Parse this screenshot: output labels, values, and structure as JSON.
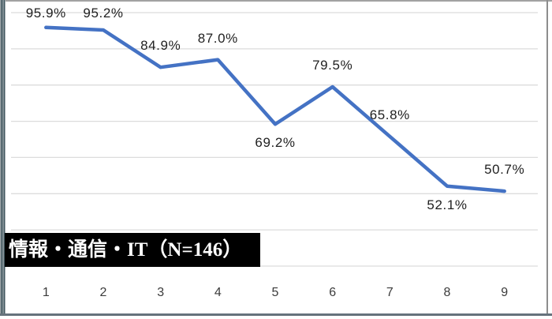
{
  "chart_data": {
    "type": "line",
    "title": "",
    "series_label": "情報・通信・IT（N=146）",
    "categories": [
      "1",
      "2",
      "3",
      "4",
      "5",
      "6",
      "7",
      "8",
      "9"
    ],
    "values": [
      95.9,
      95.2,
      84.9,
      87.0,
      69.2,
      79.5,
      65.8,
      52.1,
      50.7
    ],
    "data_labels": [
      "95.9%",
      "95.2%",
      "84.9%",
      "87.0%",
      "69.2%",
      "79.5%",
      "65.8%",
      "52.1%",
      "50.7%"
    ],
    "label_placement": [
      "above",
      "above",
      "above",
      "above",
      "below",
      "above",
      "above",
      "below",
      "above"
    ],
    "xlabel": "",
    "ylabel": "",
    "ylim": [
      30,
      100
    ],
    "grid_step": 10,
    "grid": true,
    "legend": "none",
    "line_color": "#4472C4",
    "gridline_color": "#DCDCDC",
    "data_label_color": "#1f1f1f",
    "axis_label_color": "#3b3b3b",
    "series_box_bg": "#000000",
    "series_box_text_color": "#FFFFFF"
  }
}
